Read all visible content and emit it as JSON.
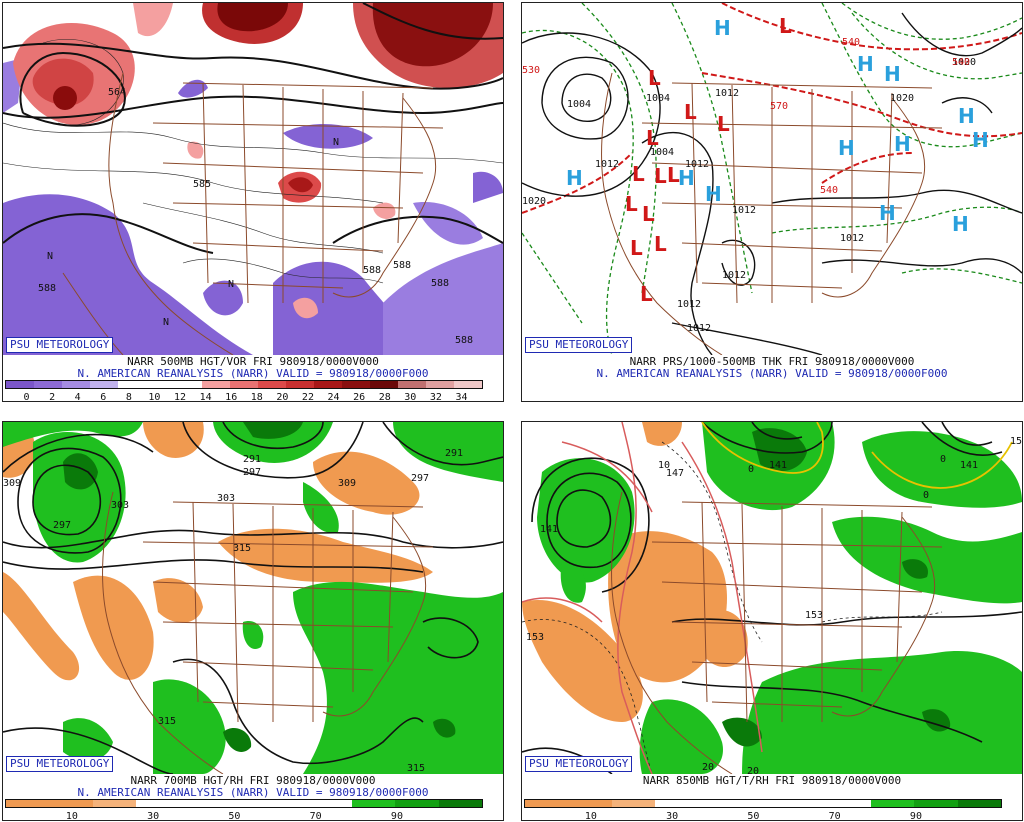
{
  "branding": "PSU METEOROLOGY",
  "panels": [
    {
      "id": "500mb",
      "title": "NARR 500MB HGT/VOR FRI 980918/0000V000",
      "subtitle": "N. AMERICAN REANALYSIS (NARR) VALID = 980918/0000F000",
      "colorbar": [
        "#7b56c9",
        "#8d6bd6",
        "#a58ce2",
        "#c2b3ee",
        "#ffffff",
        "#ffffff",
        "#ffffff",
        "#f4a0a0",
        "#e87272",
        "#dc4a4a",
        "#c83030",
        "#a81818",
        "#8a1010",
        "#6a0808",
        "#c07070",
        "#e0a0a0",
        "#f0c8c8"
      ],
      "ticks": [
        "0",
        "2",
        "4",
        "6",
        "8",
        "10",
        "12",
        "14",
        "16",
        "18",
        "20",
        "22",
        "24",
        "26",
        "28",
        "30",
        "32",
        "34"
      ],
      "labels": [
        "588",
        "588",
        "588",
        "588",
        "564",
        "585",
        "588",
        "N",
        "N",
        "N",
        "N"
      ]
    },
    {
      "id": "mslp",
      "title": "NARR PRS/1000-500MB THK FRI 980918/0000V000",
      "subtitle": "N. AMERICAN REANALYSIS (NARR) VALID = 980918/0000F000",
      "labels": [
        "1004",
        "1004",
        "1012",
        "1012",
        "1012",
        "1012",
        "1012",
        "1012",
        "1012",
        "1020",
        "1020",
        "1020",
        "1012",
        "1004",
        "540",
        "540",
        "540",
        "570",
        "530"
      ]
    },
    {
      "id": "700mb",
      "title": "NARR 700MB HGT/RH FRI 980918/0000V000",
      "subtitle": "N. AMERICAN REANALYSIS (NARR) VALID = 980918/0000F000",
      "colorbar": [
        "#ef9a52",
        "#ef9a52",
        "#f4b27a",
        "#ffffff",
        "#ffffff",
        "#ffffff",
        "#ffffff",
        "#ffffff",
        "#1fbf1f",
        "#12a012",
        "#0a7a0a"
      ],
      "ticks": [
        "10",
        "30",
        "50",
        "70",
        "90"
      ],
      "labels": [
        "309",
        "297",
        "303",
        "291",
        "297",
        "303",
        "309",
        "315",
        "315",
        "315",
        "291",
        "297"
      ]
    },
    {
      "id": "850mb",
      "title": "NARR 850MB HGT/T/RH FRI 980918/0000V000",
      "colorbar": [
        "#ef9a52",
        "#ef9a52",
        "#f4b27a",
        "#ffffff",
        "#ffffff",
        "#ffffff",
        "#ffffff",
        "#ffffff",
        "#1fbf1f",
        "#12a012",
        "#0a7a0a"
      ],
      "ticks": [
        "10",
        "30",
        "50",
        "70",
        "90"
      ],
      "labels": [
        "141",
        "141",
        "141",
        "147",
        "153",
        "153",
        "10",
        "20",
        "20",
        "0",
        "0",
        "0",
        "15"
      ]
    }
  ],
  "highs": [
    "H",
    "H",
    "H",
    "H",
    "H",
    "H",
    "H",
    "H",
    "H",
    "H",
    "H",
    "H"
  ],
  "lows": [
    "L",
    "L",
    "L",
    "L",
    "L",
    "L",
    "L",
    "L",
    "L",
    "L",
    "L",
    "L",
    "L"
  ]
}
